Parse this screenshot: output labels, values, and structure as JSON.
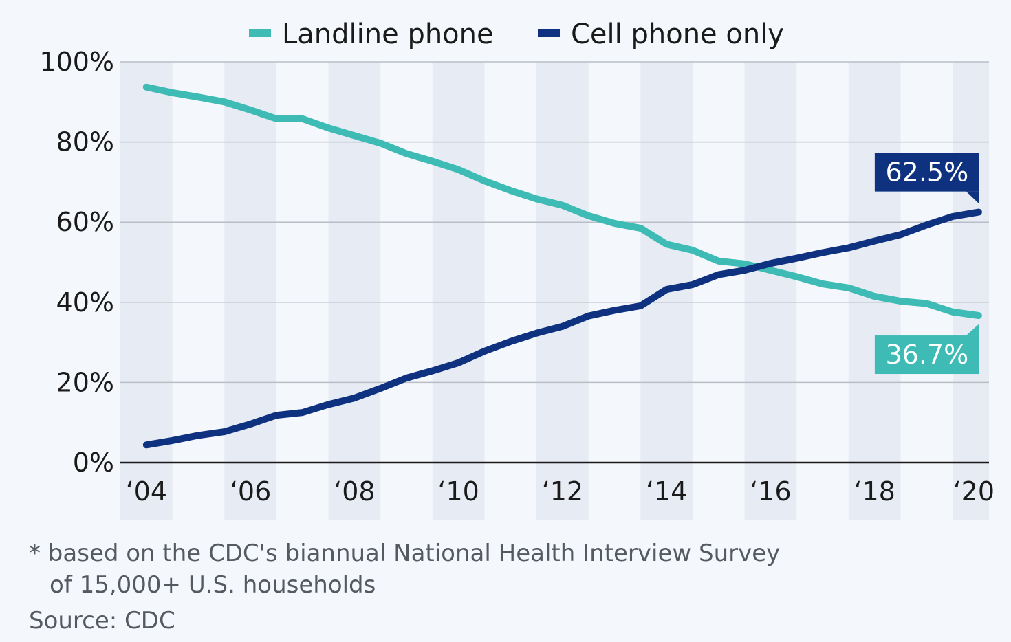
{
  "colors": {
    "landline": "#3dbbb4",
    "cell": "#0e3180",
    "band": "#e6ebf4",
    "grid": "#b9bec6",
    "axis": "#1a1a1a"
  },
  "footnote": {
    "line1": "* based on the CDC's biannual National Health Interview Survey",
    "line2": "of 15,000+ U.S. households",
    "source": "Source: CDC"
  },
  "chart_data": {
    "type": "line",
    "title": "",
    "xlabel": "",
    "ylabel": "",
    "x": [
      2004.0,
      2004.5,
      2005.0,
      2005.5,
      2006.0,
      2006.5,
      2007.0,
      2007.5,
      2008.0,
      2008.5,
      2009.0,
      2009.5,
      2010.0,
      2010.5,
      2011.0,
      2011.5,
      2012.0,
      2012.5,
      2013.0,
      2013.5,
      2014.0,
      2014.5,
      2015.0,
      2015.5,
      2016.0,
      2016.5,
      2017.0,
      2017.5,
      2018.0,
      2018.5,
      2019.0,
      2019.5,
      2020.0
    ],
    "xlim": [
      2003.5,
      2020.2
    ],
    "x_ticks": [
      2004,
      2006,
      2008,
      2010,
      2012,
      2014,
      2016,
      2018,
      2020
    ],
    "x_tick_labels": [
      "‘04",
      "‘06",
      "‘08",
      "‘10",
      "‘12",
      "‘14",
      "‘16",
      "‘18",
      "‘20"
    ],
    "ylim": [
      0,
      100
    ],
    "y_ticks": [
      0,
      20,
      40,
      60,
      80,
      100
    ],
    "y_tick_labels": [
      "0%",
      "20%",
      "40%",
      "60%",
      "80%",
      "100%"
    ],
    "series": [
      {
        "name": "Landline phone",
        "color_key": "landline",
        "values": [
          93.7,
          92.3,
          91.2,
          90.0,
          88.0,
          85.8,
          85.8,
          83.5,
          81.6,
          79.7,
          77.1,
          75.2,
          73.1,
          70.3,
          67.9,
          65.8,
          64.2,
          61.6,
          59.7,
          58.5,
          54.5,
          53.0,
          50.3,
          49.6,
          48.0,
          46.4,
          44.6,
          43.6,
          41.5,
          40.3,
          39.7,
          37.6,
          36.7
        ]
      },
      {
        "name": "Cell phone only",
        "color_key": "cell",
        "values": [
          4.4,
          5.5,
          6.8,
          7.7,
          9.6,
          11.8,
          12.5,
          14.5,
          16.1,
          18.5,
          21.1,
          22.9,
          24.9,
          27.8,
          30.2,
          32.3,
          34.0,
          36.6,
          38.0,
          39.1,
          43.2,
          44.4,
          46.9,
          48.0,
          49.7,
          51.0,
          52.4,
          53.6,
          55.3,
          56.9,
          59.3,
          61.4,
          62.5
        ]
      }
    ],
    "callouts": [
      {
        "series": "Cell phone only",
        "label": "62.5%"
      },
      {
        "series": "Landline phone",
        "label": "36.7%"
      }
    ],
    "grid": true,
    "legend": "top-center",
    "year_bands": "alternating two-year shaded columns"
  }
}
